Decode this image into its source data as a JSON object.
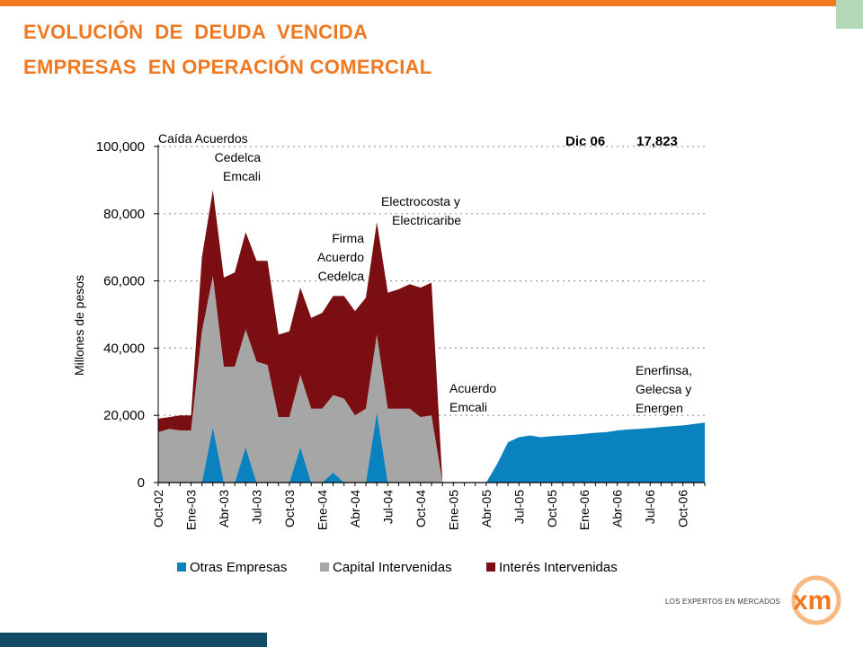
{
  "header": {
    "title_line1": "EVOLUCIÓN  DE  DEUDA  VENCIDA",
    "title_line2": "EMPRESAS  EN OPERACIÓN COMERCIAL"
  },
  "logo": {
    "tagline": "LOS EXPERTOS EN MERCADOS",
    "name": "xm"
  },
  "colors": {
    "accent": "#f07820",
    "otras": "#0a82c0",
    "capital": "#a6a6a6",
    "interes": "#7a0e12",
    "footer": "#134a66"
  },
  "chart_data": {
    "type": "area",
    "stacked": true,
    "ylabel": "Millones de pesos",
    "ylim": [
      0,
      100000
    ],
    "yticks": [
      0,
      20000,
      40000,
      60000,
      80000,
      100000
    ],
    "ytick_labels": [
      "0",
      "20,000",
      "40,000",
      "60,000",
      "80,000",
      "100,000"
    ],
    "grid": "horizontal dotted",
    "x": [
      "Oct-02",
      "Nov-02",
      "Dic-02",
      "Ene-03",
      "Feb-03",
      "Mar-03",
      "Abr-03",
      "May-03",
      "Jun-03",
      "Jul-03",
      "Ago-03",
      "Sep-03",
      "Oct-03",
      "Nov-03",
      "Dic-03",
      "Ene-04",
      "Feb-04",
      "Mar-04",
      "Abr-04",
      "May-04",
      "Jun-04",
      "Jul-04",
      "Ago-04",
      "Sep-04",
      "Oct-04",
      "Nov-04",
      "Dic-04",
      "Ene-05",
      "Feb-05",
      "Mar-05",
      "Abr-05",
      "May-05",
      "Jun-05",
      "Jul-05",
      "Ago-05",
      "Sep-05",
      "Oct-05",
      "Nov-05",
      "Dic-05",
      "Ene-06",
      "Feb-06",
      "Mar-06",
      "Abr-06",
      "May-06",
      "Jun-06",
      "Jul-06",
      "Ago-06",
      "Sep-06",
      "Oct-06",
      "Nov-06",
      "Dic-06"
    ],
    "tick_labels": [
      "Oct-02",
      "Ene-03",
      "Abr-03",
      "Jul-03",
      "Oct-03",
      "Ene-04",
      "Abr-04",
      "Jul-04",
      "Oct-04",
      "Ene-05",
      "Abr-05",
      "Jul-05",
      "Oct-05",
      "Ene-06",
      "Abr-06",
      "Jul-06",
      "Oct-06"
    ],
    "series": [
      {
        "name": "Otras Empresas",
        "color": "#0a82c0",
        "values": [
          0,
          0,
          0,
          0,
          0,
          16500,
          0,
          0,
          10500,
          0,
          0,
          0,
          0,
          10500,
          0,
          0,
          3000,
          0,
          0,
          0,
          21000,
          0,
          0,
          0,
          0,
          0,
          0,
          0,
          0,
          0,
          0,
          5500,
          12000,
          13500,
          14000,
          13500,
          13800,
          14000,
          14200,
          14500,
          14800,
          15000,
          15500,
          15800,
          16000,
          16200,
          16500,
          16800,
          17000,
          17400,
          17823
        ]
      },
      {
        "name": "Capital Intervenidas",
        "color": "#a6a6a6",
        "values": [
          15000,
          16000,
          15500,
          15500,
          45000,
          45000,
          34500,
          34500,
          35000,
          36000,
          35000,
          19500,
          19500,
          21500,
          22000,
          22000,
          23000,
          25000,
          20000,
          22000,
          23000,
          22000,
          22000,
          22000,
          19500,
          20000,
          0,
          0,
          0,
          0,
          0,
          0,
          0,
          0,
          0,
          0,
          0,
          0,
          0,
          0,
          0,
          0,
          0,
          0,
          0,
          0,
          0,
          0,
          0,
          0,
          0
        ]
      },
      {
        "name": "Interés Intervenidas",
        "color": "#7a0e12",
        "values": [
          4000,
          3500,
          4500,
          4500,
          22000,
          25500,
          26500,
          28000,
          29000,
          30000,
          31000,
          24500,
          25500,
          26000,
          27000,
          28500,
          29500,
          30500,
          31000,
          33000,
          33500,
          34500,
          35500,
          37000,
          38500,
          39500,
          0,
          0,
          0,
          0,
          0,
          0,
          0,
          0,
          0,
          0,
          0,
          0,
          0,
          0,
          0,
          0,
          0,
          0,
          0,
          0,
          0,
          0,
          0,
          0,
          0
        ]
      }
    ],
    "legend": {
      "position": "bottom",
      "entries": [
        "Otras Empresas",
        "Capital Intervenidas",
        "Interés Intervenidas"
      ]
    },
    "annotations": [
      {
        "lines": [
          "Caída Acuerdos",
          "Cedelca",
          "Emcali"
        ]
      },
      {
        "lines": [
          "Firma",
          "Acuerdo",
          "Cedelca"
        ]
      },
      {
        "lines": [
          "Electrocosta y",
          "Electricaribe"
        ]
      },
      {
        "lines": [
          "Acuerdo",
          "Emcali"
        ]
      },
      {
        "lines": [
          "Enerfinsa,",
          "Gelecsa y",
          "Energen"
        ]
      }
    ],
    "latest": {
      "label": "Dic  06",
      "value": "17,823"
    }
  }
}
